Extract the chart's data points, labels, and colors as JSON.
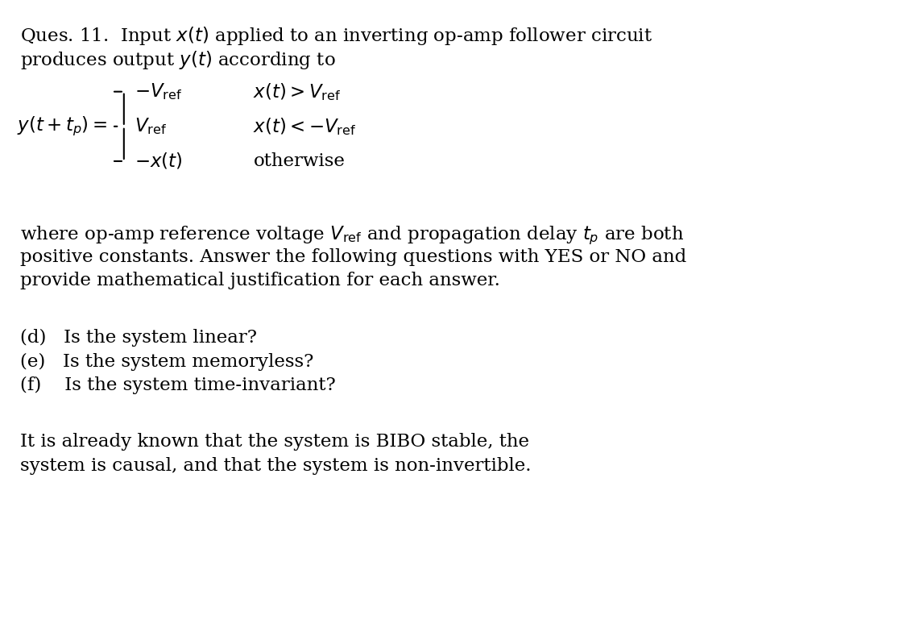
{
  "bg_color": "#ffffff",
  "text_color": "#000000",
  "fig_width": 11.31,
  "fig_height": 7.84,
  "title_line1": "Ques. 11.  Input $x(t)$ applied to an inverting op-amp follower circuit",
  "title_line2": "produces output $y(t)$ according to",
  "lhs": "$y(t+t_p) =$",
  "cases_vals": [
    "$-V_{\\mathrm{ref}}$",
    "$V_{\\mathrm{ref}}$",
    "$-x(t)$"
  ],
  "cases_conds": [
    "$x(t) > V_{\\mathrm{ref}}$",
    "$x(t) < -V_{\\mathrm{ref}}$",
    "otherwise"
  ],
  "para1_line1": "where op-amp reference voltage $V_{\\mathrm{ref}}$ and propagation delay $t_p$ are both",
  "para1_line2": "positive constants. Answer the following questions with YES or NO and",
  "para1_line3": "provide mathematical justification for each answer.",
  "questions": [
    "(d)   Is the system linear?",
    "(e)   Is the system memoryless?",
    "(f)    Is the system time-invariant?"
  ],
  "para2_line1": "It is already known that the system is BIBO stable, the",
  "para2_line2": "system is causal, and that the system is non-invertible.",
  "fs_main": 16.5,
  "fs_case": 16.5
}
